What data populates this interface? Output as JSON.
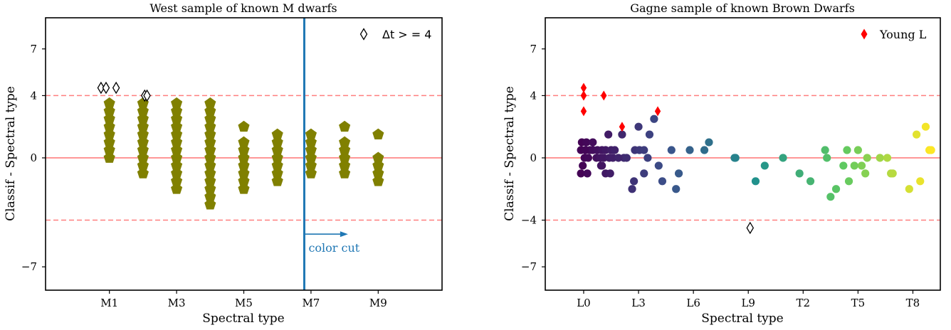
{
  "chart_data": [
    {
      "type": "scatter",
      "title": "West sample of known M dwarfs",
      "xlabel": "Spectral type",
      "ylabel": "Classif - Spectral type",
      "xlim": [
        -0.9,
        10.9
      ],
      "ylim": [
        -8.5,
        9
      ],
      "x_tick_values": [
        1,
        3,
        5,
        7,
        9
      ],
      "x_tick_labels": [
        "M1",
        "M3",
        "M5",
        "M7",
        "M9"
      ],
      "y_tick_values": [
        -7,
        0,
        4,
        7
      ],
      "y_tick_labels": [
        "−7",
        "0",
        "4",
        "7"
      ],
      "hlines_solid": [
        0
      ],
      "hlines_dashed": [
        4,
        -4
      ],
      "vline": 6.8,
      "annotation": {
        "text": "color cut",
        "x_start": 6.8,
        "x_end": 8.1,
        "y": -4.9
      },
      "legend": [
        {
          "label": "Δt > = 4",
          "marker": "open-diamond",
          "position": "top-right"
        }
      ],
      "colors": {
        "points": "#808000",
        "vline": "#1f77b4",
        "ref_lines": "#ff7f7f"
      },
      "series": [
        {
          "name": "M dwarfs",
          "marker": "pentagon",
          "points": [
            {
              "x": 1,
              "y_values": [
                0,
                0.5,
                1,
                1.5,
                2,
                2.5,
                3,
                3.5
              ]
            },
            {
              "x": 2,
              "y_values": [
                -1,
                -0.5,
                0,
                0.5,
                1,
                1.5,
                2,
                2.5,
                3,
                3.5
              ]
            },
            {
              "x": 3,
              "y_values": [
                -2,
                -1.5,
                -1,
                -0.5,
                0,
                0.5,
                1,
                1.5,
                2,
                2.5,
                3,
                3.5
              ]
            },
            {
              "x": 4,
              "y_values": [
                -3,
                -2.5,
                -2,
                -1.5,
                -1,
                -0.5,
                0,
                0.5,
                1,
                1.5,
                2,
                2.5,
                3,
                3.5
              ]
            },
            {
              "x": 5,
              "y_values": [
                -2,
                -1.5,
                -1,
                -0.5,
                0,
                0.5,
                1,
                2
              ]
            },
            {
              "x": 6,
              "y_values": [
                -1.5,
                -1,
                -0.5,
                0,
                0.5,
                1,
                1.5
              ]
            },
            {
              "x": 7,
              "y_values": [
                -1,
                -0.5,
                0,
                0.5,
                1,
                1.5
              ]
            },
            {
              "x": 8,
              "y_values": [
                -1,
                -0.5,
                0,
                0.5,
                1,
                2
              ]
            },
            {
              "x": 9,
              "y_values": [
                -1.5,
                -1,
                -0.5,
                0,
                1.5
              ]
            }
          ]
        },
        {
          "name": "Δt > = 4",
          "marker": "open-diamond",
          "x": [
            0.75,
            0.9,
            1.2,
            2.05,
            2.12
          ],
          "y": [
            4.5,
            4.5,
            4.5,
            4,
            4
          ]
        }
      ]
    },
    {
      "type": "scatter",
      "title": "Gagne sample of known Brown Dwarfs",
      "xlabel": "Spectral type",
      "ylabel": "Classif - Spectral type",
      "xlim": [
        -2.1,
        19.5
      ],
      "ylim": [
        -8.5,
        9
      ],
      "x_tick_values": [
        0,
        3,
        6,
        9,
        12,
        15,
        18
      ],
      "x_tick_labels": [
        "L0",
        "L3",
        "L6",
        "L9",
        "T2",
        "T5",
        "T8"
      ],
      "y_tick_values": [
        -7,
        -4,
        0,
        4,
        7
      ],
      "y_tick_labels": [
        "−7",
        "−4",
        "0",
        "4",
        "7"
      ],
      "hlines_solid": [
        0
      ],
      "hlines_dashed": [
        4,
        -4
      ],
      "legend": [
        {
          "label": "Young L",
          "marker": "red-diamond",
          "position": "top-right"
        }
      ],
      "colors": {
        "young": "#ff0000",
        "ref_lines": "#ff7f7f",
        "colormap": "viridis"
      },
      "series": [
        {
          "name": "Brown dwarfs",
          "marker": "circle",
          "x": [
            -0.1,
            0.15,
            0.5,
            0.35,
            -0.15,
            0.1,
            0.5,
            0.75,
            1.0,
            1.2,
            1.5,
            0.7,
            0.9,
            1.1,
            1.4,
            1.6,
            1.35,
            0.05,
            0.25,
            -0.05,
            -0.15,
            0.2,
            0.95,
            1.0,
            1.2,
            1.45,
            2.2,
            2.35,
            2.1,
            1.9,
            1.7,
            2.8,
            3.0,
            3.05,
            3.3,
            3.6,
            3.85,
            2.75,
            2.65,
            3.5,
            3.3,
            4.1,
            4.8,
            4.3,
            5.2,
            5.05,
            5.8,
            6.6,
            6.85,
            8.3,
            8.25,
            9.4,
            9.9,
            10.9,
            12.4,
            11.8,
            13.2,
            13.8,
            13.5,
            13.3,
            14.4,
            14.5,
            14.2,
            14.8,
            15.0,
            15.2,
            15.5,
            15.4,
            16.2,
            16.8,
            16.6,
            16.9,
            17.8,
            18.2,
            18.7,
            18.9,
            19.0,
            18.4
          ],
          "y": [
            1,
            1,
            1,
            0.5,
            0.5,
            0.5,
            0.5,
            0.5,
            0.5,
            0.5,
            0.5,
            0,
            0,
            0,
            0,
            0,
            1.5,
            0,
            0,
            -0.5,
            -1,
            -1,
            -0.5,
            -0.5,
            -1,
            -1,
            0,
            0,
            1.5,
            0,
            0.5,
            0.5,
            2,
            0.5,
            0.5,
            1.5,
            2.5,
            -1.5,
            -2,
            0,
            -1,
            -0.5,
            0.5,
            -1.5,
            -1,
            -2,
            0.5,
            0.5,
            1,
            0,
            0,
            -1.5,
            -0.5,
            0,
            -1.5,
            -1,
            0.5,
            -2,
            -2.5,
            0,
            0.5,
            -1.5,
            -0.5,
            -0.5,
            0.5,
            -0.5,
            0,
            -1,
            0,
            -1,
            0,
            -1,
            -2,
            1.5,
            2,
            0.5,
            0.5,
            -1.5
          ],
          "color_by": "x"
        },
        {
          "name": "Young L",
          "marker": "red-diamond",
          "x": [
            0,
            0,
            0,
            1.1,
            2.1,
            4.05,
            0
          ],
          "y": [
            4.5,
            4,
            4,
            4,
            2,
            3,
            3
          ]
        },
        {
          "name": "open diamond",
          "marker": "open-diamond",
          "x": [
            9.1
          ],
          "y": [
            -4.5
          ]
        }
      ]
    }
  ]
}
